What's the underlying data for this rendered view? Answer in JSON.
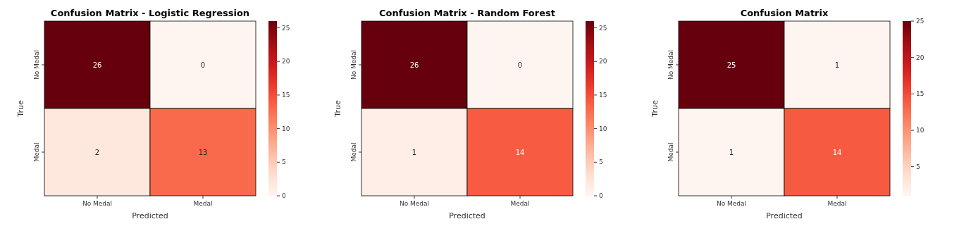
{
  "chart_data": [
    {
      "type": "heatmap",
      "title": "Confusion Matrix - Logistic Regression",
      "xlabel": "Predicted",
      "ylabel": "True",
      "categories": [
        "No Medal",
        "Medal"
      ],
      "y_categories": [
        "No Medal",
        "Medal"
      ],
      "cells": [
        [
          26,
          0
        ],
        [
          2,
          13
        ]
      ],
      "clim": [
        0,
        26
      ],
      "cticks": [
        0,
        5,
        10,
        15,
        20,
        25
      ],
      "data_labels": true
    },
    {
      "type": "heatmap",
      "title": "Confusion Matrix - Random Forest",
      "xlabel": "Predicted",
      "ylabel": "True",
      "categories": [
        "No Medal",
        "Medal"
      ],
      "y_categories": [
        "No Medal",
        "Medal"
      ],
      "cells": [
        [
          26,
          0
        ],
        [
          1,
          14
        ]
      ],
      "clim": [
        0,
        26
      ],
      "cticks": [
        0,
        5,
        10,
        15,
        20,
        25
      ],
      "data_labels": true
    },
    {
      "type": "heatmap",
      "title": "Confusion Matrix",
      "xlabel": "Predicted",
      "ylabel": "True",
      "categories": [
        "No Medal",
        "Medal"
      ],
      "y_categories": [
        "No Medal",
        "Medal"
      ],
      "cells": [
        [
          25,
          1
        ],
        [
          1,
          14
        ]
      ],
      "clim": [
        1,
        25
      ],
      "cticks": [
        5,
        10,
        15,
        20,
        25
      ],
      "data_labels": true
    }
  ]
}
